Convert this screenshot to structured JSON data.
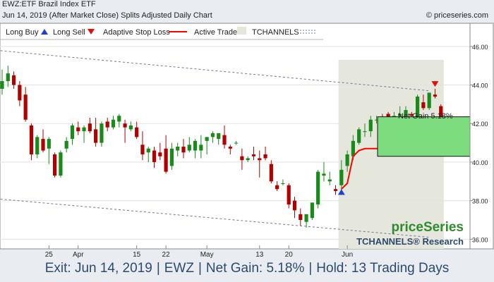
{
  "header": {
    "line1": "EWZ:ETF Brazil Index ETF",
    "line2": "Jun 14, 2019 (After Market Close)  Splits Adjusted Daily Chart",
    "copyright": "© priceseries.com"
  },
  "legend": {
    "long_buy": "Long Buy",
    "long_sell": "Long Sell",
    "adaptive_stop": "Adaptive Stop Loss",
    "active_trade": "Active Trade",
    "tchannels": "TCHANNELS"
  },
  "branding": {
    "logo": "priceSeries",
    "tchannels_research": "TCHANNELS® Research"
  },
  "annotations": {
    "net_gain_box": "Net Gain 5.18%"
  },
  "footer": {
    "exit": "Exit: Jun 14, 2019",
    "symbol": "EWZ",
    "net_gain": "Net Gain: 5.18%",
    "hold": "Hold: 13 Trading Days"
  },
  "colors": {
    "up_candle": "#1a8a1a",
    "down_candle": "#b00000",
    "stop_line": "#ff0000",
    "active_trade_bg": "#e6e7dc",
    "gain_box": "#7ddc7d",
    "buy_marker": "#1f3fd6",
    "sell_marker": "#e01010",
    "channel": "#6a7b90",
    "logo_green": "#2f8a2f",
    "research_blue": "#2d4a6b"
  },
  "chart_data": {
    "type": "candlestick",
    "ylim": [
      35.5,
      47.2
    ],
    "y_ticks": [
      "46.00",
      "44.00",
      "42.00",
      "40.00",
      "38.00",
      "36.00"
    ],
    "x_ticks": [
      {
        "label": "25",
        "i": 8
      },
      {
        "label": "Apr",
        "i": 13
      },
      {
        "label": "15",
        "i": 23
      },
      {
        "label": "22",
        "i": 28
      },
      {
        "label": "May",
        "i": 35
      },
      {
        "label": "13",
        "i": 44
      },
      {
        "label": "20",
        "i": 49
      },
      {
        "label": "Jun",
        "i": 59
      }
    ],
    "candles": [
      [
        43.8,
        44.8,
        43.5,
        44.2
      ],
      [
        44.2,
        45.0,
        43.9,
        44.6
      ],
      [
        44.5,
        44.7,
        43.8,
        44.0
      ],
      [
        44.0,
        44.2,
        42.9,
        43.2
      ],
      [
        43.5,
        43.9,
        42.1,
        42.2
      ],
      [
        41.9,
        42.0,
        40.1,
        40.4
      ],
      [
        40.4,
        41.4,
        40.2,
        41.3
      ],
      [
        41.2,
        41.7,
        40.5,
        40.6
      ],
      [
        40.7,
        41.3,
        39.9,
        41.2
      ],
      [
        40.4,
        40.5,
        39.2,
        39.3
      ],
      [
        39.3,
        40.6,
        39.2,
        40.5
      ],
      [
        40.7,
        41.3,
        40.5,
        41.1
      ],
      [
        41.2,
        42.0,
        40.9,
        41.9
      ],
      [
        41.8,
        42.1,
        41.4,
        41.6
      ],
      [
        41.6,
        41.9,
        41.0,
        41.8
      ],
      [
        42.0,
        42.3,
        41.5,
        41.6
      ],
      [
        41.7,
        42.3,
        40.8,
        41.0
      ],
      [
        41.0,
        42.1,
        40.8,
        42.0
      ],
      [
        42.1,
        42.3,
        41.6,
        41.8
      ],
      [
        41.8,
        42.4,
        41.7,
        42.2
      ],
      [
        42.1,
        42.5,
        41.8,
        42.4
      ],
      [
        42.0,
        42.2,
        41.0,
        41.8
      ],
      [
        41.7,
        42.1,
        41.6,
        41.9
      ],
      [
        41.8,
        42.1,
        41.2,
        41.3
      ],
      [
        40.9,
        41.6,
        40.1,
        40.4
      ],
      [
        40.5,
        40.8,
        40.0,
        40.7
      ],
      [
        40.6,
        40.8,
        39.7,
        40.0
      ],
      [
        40.5,
        41.0,
        40.1,
        40.3
      ],
      [
        40.7,
        41.4,
        39.4,
        39.5
      ],
      [
        39.8,
        41.0,
        39.6,
        40.7
      ],
      [
        40.6,
        41.0,
        40.3,
        40.8
      ],
      [
        40.8,
        41.2,
        40.2,
        40.5
      ],
      [
        40.6,
        41.3,
        40.5,
        40.9
      ],
      [
        40.6,
        41.2,
        40.2,
        41.1
      ],
      [
        40.6,
        41.4,
        40.2,
        40.9
      ],
      [
        41.1,
        41.3,
        40.4,
        41.3
      ],
      [
        41.3,
        41.6,
        41.0,
        41.5
      ],
      [
        41.2,
        41.5,
        40.9,
        41.5
      ],
      [
        41.4,
        41.9,
        40.7,
        40.9
      ],
      [
        40.8,
        40.9,
        40.4,
        40.7
      ],
      [
        41.0,
        41.1,
        40.9,
        41.0
      ],
      [
        40.3,
        40.7,
        39.6,
        40.1
      ],
      [
        40.1,
        40.3,
        40.0,
        40.2
      ],
      [
        40.4,
        40.8,
        40.1,
        40.3
      ],
      [
        40.2,
        40.6,
        39.2,
        40.1
      ],
      [
        40.4,
        40.8,
        40.1,
        40.2
      ],
      [
        39.9,
        40.1,
        38.9,
        39.0
      ],
      [
        38.8,
        39.0,
        38.5,
        38.6
      ],
      [
        38.9,
        39.1,
        38.8,
        38.9
      ],
      [
        38.8,
        38.9,
        37.6,
        37.8
      ],
      [
        38.0,
        38.2,
        37.1,
        37.5
      ],
      [
        37.3,
        37.6,
        36.7,
        37.0
      ],
      [
        36.9,
        37.2,
        36.6,
        37.3
      ],
      [
        37.1,
        37.9,
        37.0,
        37.9
      ],
      [
        37.8,
        39.6,
        37.6,
        39.5
      ],
      [
        39.3,
        40.0,
        39.0,
        39.4
      ],
      [
        39.0,
        39.5,
        38.8,
        39.1
      ],
      [
        38.6,
        38.8,
        38.3,
        38.5
      ],
      [
        38.8,
        40.1,
        38.3,
        39.6
      ],
      [
        39.8,
        40.6,
        39.5,
        40.4
      ],
      [
        40.3,
        41.4,
        40.1,
        41.1
      ],
      [
        41.0,
        41.8,
        40.9,
        41.7
      ],
      [
        41.6,
        42.0,
        41.3,
        41.6
      ],
      [
        41.6,
        42.4,
        41.3,
        42.2
      ],
      [
        42.2,
        42.4,
        42.0,
        42.2
      ],
      [
        42.3,
        42.5,
        41.6,
        41.8
      ],
      [
        42.5,
        42.6,
        40.9,
        41.4
      ],
      [
        41.5,
        42.6,
        41.4,
        42.4
      ],
      [
        42.4,
        42.9,
        42.0,
        42.5
      ],
      [
        42.4,
        42.9,
        42.2,
        42.7
      ],
      [
        42.5,
        42.6,
        41.9,
        42.4
      ],
      [
        42.2,
        43.5,
        42.1,
        43.4
      ],
      [
        43.1,
        43.5,
        42.7,
        42.8
      ],
      [
        42.8,
        43.6,
        42.7,
        43.6
      ],
      [
        43.5,
        43.8,
        43.3,
        43.4
      ],
      [
        42.9,
        43.0,
        42.1,
        42.3
      ]
    ],
    "adaptive_stop": [
      [
        58,
        38.6
      ],
      [
        59,
        38.9
      ],
      [
        60,
        40.3
      ],
      [
        61,
        40.6
      ],
      [
        62,
        40.7
      ],
      [
        63,
        40.7
      ],
      [
        64,
        40.7
      ],
      [
        65,
        40.7
      ],
      [
        66,
        40.7
      ],
      [
        67,
        40.7
      ],
      [
        68,
        40.7
      ],
      [
        69,
        40.7
      ],
      [
        70,
        41.0
      ],
      [
        71,
        41.2
      ],
      [
        72,
        41.7
      ],
      [
        73,
        41.7
      ],
      [
        74,
        41.7
      ],
      [
        75,
        41.7
      ]
    ],
    "active_trade": {
      "from": 58,
      "to": 75
    },
    "buy_marker": {
      "i": 58,
      "price": 38.45
    },
    "sell_marker": {
      "i": 74,
      "price": 44.05
    },
    "gain_box": {
      "from": 40.3,
      "to": 42.35
    },
    "channel_top": [
      [
        -1,
        45.8
      ],
      [
        73,
        43.7
      ]
    ],
    "channel_bottom": [
      [
        -1,
        38.1
      ],
      [
        73,
        36.1
      ]
    ]
  }
}
